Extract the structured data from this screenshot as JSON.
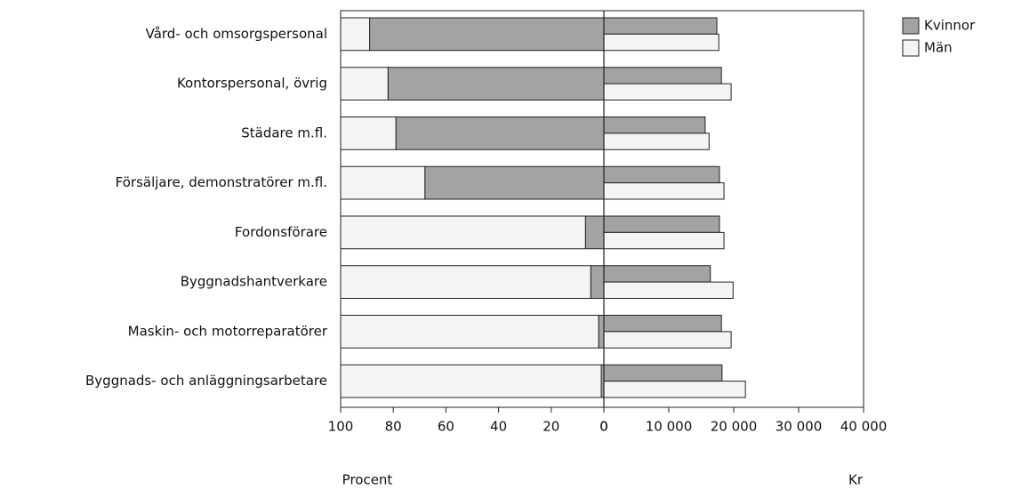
{
  "chart_data": {
    "type": "bar",
    "categories": [
      "Vård- och omsorgspersonal",
      "Kontorspersonal, övrig",
      "Städare m.fl.",
      "Försäljare, demonstratörer m.fl.",
      "Fordonsförare",
      "Byggnadshantverkare",
      "Maskin- och motorreparatörer",
      "Byggnads- och anläggningsarbetare"
    ],
    "series": [
      {
        "name": "Kvinnor",
        "color": "#a3a3a3",
        "share": [
          89,
          82,
          79,
          68,
          7,
          5,
          2,
          1
        ],
        "salary": [
          17400,
          18100,
          15600,
          17800,
          17800,
          16400,
          18100,
          18200
        ]
      },
      {
        "name": "Män",
        "color": "#f4f4f4",
        "share": [
          11,
          18,
          21,
          32,
          93,
          95,
          98,
          99
        ],
        "salary": [
          17700,
          19600,
          16200,
          18500,
          18500,
          19900,
          19600,
          21800
        ]
      }
    ],
    "share_axis": {
      "label": "Procent",
      "xlim": [
        100,
        0
      ],
      "xticks": [
        100,
        80,
        60,
        40,
        20,
        0
      ]
    },
    "salary_axis": {
      "label": "Kr",
      "xlim": [
        0,
        40000
      ],
      "xticks": [
        0,
        {
          "value": 10000,
          "label": "10 000"
        },
        {
          "value": 20000,
          "label": "20 000"
        },
        {
          "value": 30000,
          "label": "30 000"
        },
        {
          "value": 40000,
          "label": "40 000"
        }
      ]
    },
    "legend": "upper right"
  }
}
